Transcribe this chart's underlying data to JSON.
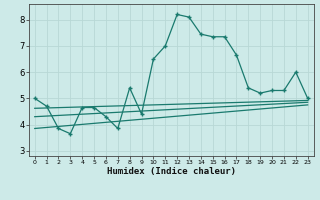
{
  "xlabel": "Humidex (Indice chaleur)",
  "x_values": [
    0,
    1,
    2,
    3,
    4,
    5,
    6,
    7,
    8,
    9,
    10,
    11,
    12,
    13,
    14,
    15,
    16,
    17,
    18,
    19,
    20,
    21,
    22,
    23
  ],
  "y_main": [
    5.0,
    4.7,
    3.85,
    3.65,
    4.65,
    4.65,
    4.3,
    3.85,
    5.4,
    4.4,
    6.5,
    7.0,
    8.2,
    8.1,
    7.45,
    7.35,
    7.35,
    6.65,
    5.4,
    5.2,
    5.3,
    5.3,
    6.0,
    5.0
  ],
  "line_color": "#1a7a6e",
  "bg_color": "#cdeae8",
  "grid_color": "#b8d8d5",
  "ylim": [
    2.8,
    8.6
  ],
  "xlim": [
    -0.5,
    23.5
  ],
  "yticks": [
    3,
    4,
    5,
    6,
    7,
    8
  ],
  "regression_lines": [
    {
      "x0": 0,
      "y0": 4.62,
      "x1": 23,
      "y1": 4.92
    },
    {
      "x0": 0,
      "y0": 4.3,
      "x1": 23,
      "y1": 4.85
    },
    {
      "x0": 0,
      "y0": 3.85,
      "x1": 23,
      "y1": 4.75
    }
  ]
}
